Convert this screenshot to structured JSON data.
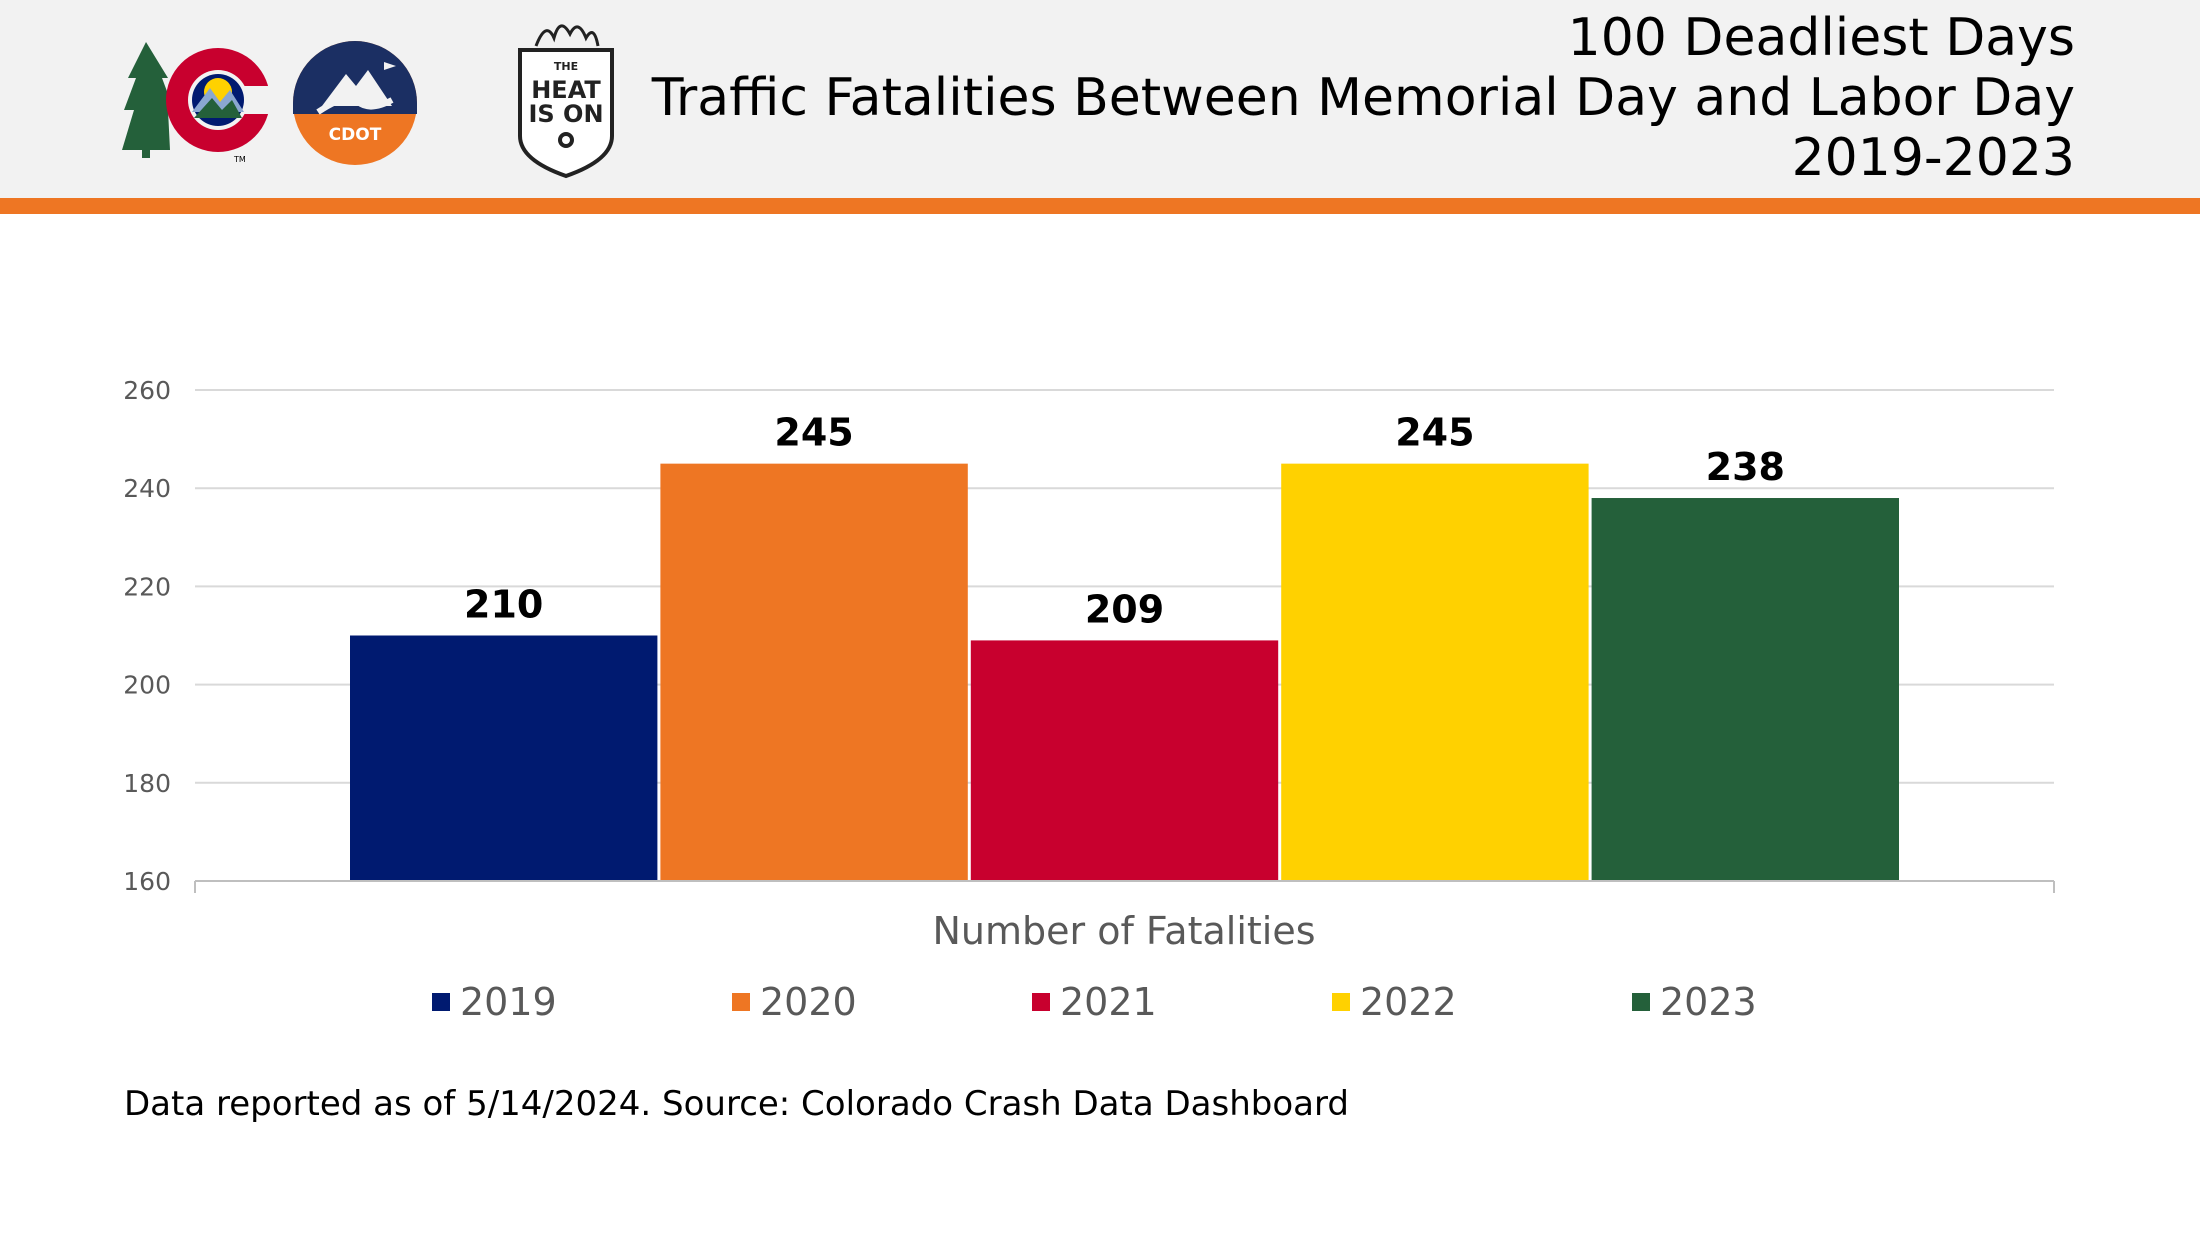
{
  "header": {
    "title_line1": "100 Deadliest Days",
    "title_line2": "Traffic Fatalities Between Memorial Day and Labor Day",
    "title_line3": "2019-2023",
    "accent_color": "#ee7623",
    "logos": {
      "colorado_trademark": "TM",
      "cdot_label": "CDOT",
      "heat_the": "THE",
      "heat_line1": "HEAT",
      "heat_line2": "IS ON"
    }
  },
  "chart_data": {
    "type": "bar",
    "title": "100 Deadliest Days — Traffic Fatalities Between Memorial Day and Labor Day 2019-2023",
    "xlabel": "Number of Fatalities",
    "ylabel": "",
    "ylim": [
      160,
      260
    ],
    "yticks": [
      160,
      180,
      200,
      220,
      240,
      260
    ],
    "grid": true,
    "legend_position": "bottom",
    "categories": [
      "Number of Fatalities"
    ],
    "series": [
      {
        "name": "2019",
        "values": [
          210
        ],
        "color": "#001a70"
      },
      {
        "name": "2020",
        "values": [
          245
        ],
        "color": "#ee7623"
      },
      {
        "name": "2021",
        "values": [
          209
        ],
        "color": "#c8002e"
      },
      {
        "name": "2022",
        "values": [
          245
        ],
        "color": "#ffd100"
      },
      {
        "name": "2023",
        "values": [
          238
        ],
        "color": "#24603a"
      }
    ]
  },
  "footnote": "Data reported as of 5/14/2024. Source: Colorado Crash Data Dashboard"
}
